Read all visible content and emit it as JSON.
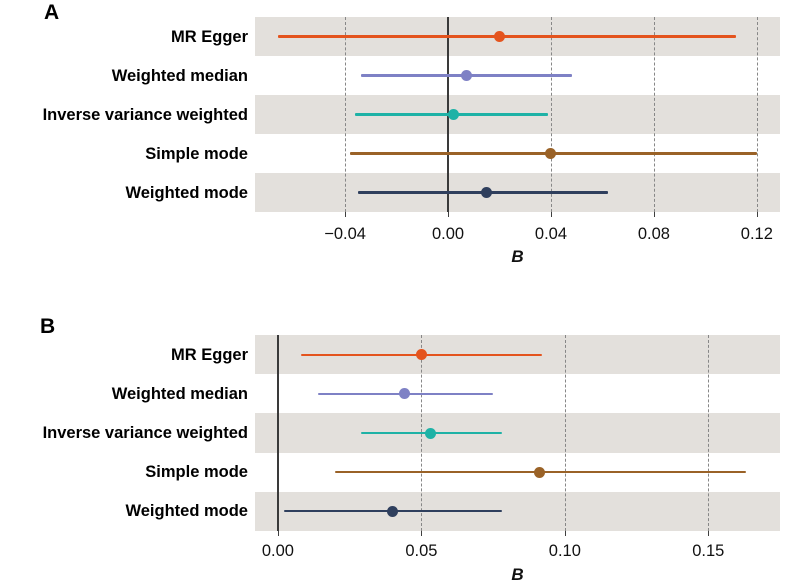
{
  "figure": {
    "background": "#ffffff",
    "stripe_color": "#e3e0dc",
    "gridline_color": "#878787",
    "zero_line_color": "#3a3a3a",
    "methods": [
      "MR Egger",
      "Weighted median",
      "Inverse variance weighted",
      "Simple mode",
      "Weighted mode"
    ],
    "method_colors": [
      "#e4541e",
      "#7e81c5",
      "#1eb2a6",
      "#9a6227",
      "#2f3f5d"
    ]
  },
  "chart_data": [
    {
      "type": "forest",
      "panel_label": "A",
      "xlabel": "B",
      "xlim": [
        -0.075,
        0.129
      ],
      "x_ticks": [
        -0.04,
        0,
        0.04,
        0.08,
        0.12
      ],
      "x_tick_labels": [
        "−0.04",
        "0.00",
        "0.04",
        "0.08",
        "0.12"
      ],
      "zero_line": 0,
      "grid": "dashed-vertical",
      "legend": "none",
      "categories": [
        "MR Egger",
        "Weighted median",
        "Inverse variance weighted",
        "Simple mode",
        "Weighted mode"
      ],
      "series": [
        {
          "name": "MR Egger",
          "estimate": 0.02,
          "ci_low": -0.066,
          "ci_high": 0.112,
          "color": "#e4541e"
        },
        {
          "name": "Weighted median",
          "estimate": 0.007,
          "ci_low": -0.034,
          "ci_high": 0.048,
          "color": "#7e81c5"
        },
        {
          "name": "Inverse variance weighted",
          "estimate": 0.002,
          "ci_low": -0.036,
          "ci_high": 0.039,
          "color": "#1eb2a6"
        },
        {
          "name": "Simple mode",
          "estimate": 0.04,
          "ci_low": -0.038,
          "ci_high": 0.12,
          "color": "#9a6227"
        },
        {
          "name": "Weighted mode",
          "estimate": 0.015,
          "ci_low": -0.035,
          "ci_high": 0.062,
          "color": "#2f3f5d"
        }
      ]
    },
    {
      "type": "forest",
      "panel_label": "B",
      "xlabel": "B",
      "xlim": [
        -0.008,
        0.175
      ],
      "x_ticks": [
        0,
        0.05,
        0.1,
        0.15
      ],
      "x_tick_labels": [
        "0.00",
        "0.05",
        "0.10",
        "0.15"
      ],
      "zero_line": 0,
      "grid": "dashed-vertical",
      "legend": "none",
      "categories": [
        "MR Egger",
        "Weighted median",
        "Inverse variance weighted",
        "Simple mode",
        "Weighted mode"
      ],
      "series": [
        {
          "name": "MR Egger",
          "estimate": 0.05,
          "ci_low": 0.008,
          "ci_high": 0.092,
          "color": "#e4541e"
        },
        {
          "name": "Weighted median",
          "estimate": 0.044,
          "ci_low": 0.014,
          "ci_high": 0.075,
          "color": "#7e81c5"
        },
        {
          "name": "Inverse variance weighted",
          "estimate": 0.053,
          "ci_low": 0.029,
          "ci_high": 0.078,
          "color": "#1eb2a6"
        },
        {
          "name": "Simple mode",
          "estimate": 0.091,
          "ci_low": 0.02,
          "ci_high": 0.163,
          "color": "#9a6227"
        },
        {
          "name": "Weighted mode",
          "estimate": 0.04,
          "ci_low": 0.002,
          "ci_high": 0.078,
          "color": "#2f3f5d"
        }
      ]
    }
  ]
}
